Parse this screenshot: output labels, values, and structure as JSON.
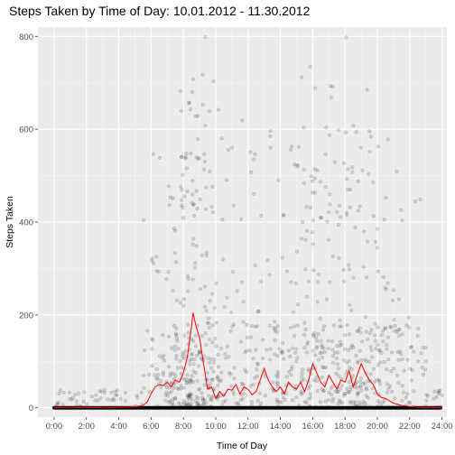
{
  "chart_data": {
    "type": "scatter",
    "title": "Steps Taken by Time of Day: 10.01.2012 - 11.30.2012",
    "xlabel": "Time of Day",
    "ylabel": "Steps Taken",
    "xlim": [
      -1,
      24.3
    ],
    "ylim": [
      -20,
      820
    ],
    "x_ticks": [
      0,
      2,
      4,
      6,
      8,
      10,
      12,
      14,
      16,
      18,
      20,
      22,
      24
    ],
    "x_tick_labels": [
      "0:00",
      "2:00",
      "4:00",
      "6:00",
      "8:00",
      "10:00",
      "12:00",
      "14:00",
      "16:00",
      "18:00",
      "20:00",
      "22:00",
      "24:00"
    ],
    "y_ticks": [
      0,
      200,
      400,
      600,
      800
    ],
    "y_tick_labels": [
      "0",
      "200",
      "400",
      "600",
      "800"
    ],
    "grid": true,
    "background": "#ebebeb",
    "point_color": "#000000",
    "line_color": "#ff0000",
    "mean_line": {
      "x": [
        0,
        1,
        2,
        3,
        4,
        5,
        5.5,
        5.75,
        6,
        6.25,
        6.5,
        6.75,
        7,
        7.25,
        7.5,
        7.75,
        8,
        8.25,
        8.5,
        8.6,
        8.75,
        9,
        9.25,
        9.5,
        9.75,
        10,
        10.25,
        10.5,
        10.75,
        11,
        11.25,
        11.5,
        11.75,
        12,
        12.25,
        12.5,
        12.75,
        13,
        13.25,
        13.5,
        13.75,
        14,
        14.25,
        14.5,
        14.75,
        15,
        15.25,
        15.5,
        15.75,
        16,
        16.25,
        16.5,
        16.75,
        17,
        17.25,
        17.5,
        17.75,
        18,
        18.25,
        18.5,
        18.75,
        19,
        19.25,
        19.5,
        19.75,
        20,
        20.25,
        20.5,
        20.75,
        21,
        21.5,
        22,
        22.5,
        23,
        23.5,
        24
      ],
      "y": [
        1,
        0,
        1,
        0,
        1,
        2,
        5,
        12,
        30,
        45,
        50,
        48,
        55,
        45,
        60,
        55,
        75,
        110,
        175,
        205,
        180,
        150,
        95,
        40,
        45,
        20,
        35,
        25,
        40,
        38,
        50,
        30,
        45,
        40,
        28,
        35,
        60,
        85,
        60,
        45,
        35,
        45,
        30,
        55,
        45,
        40,
        55,
        35,
        60,
        95,
        75,
        55,
        45,
        70,
        55,
        40,
        60,
        55,
        80,
        45,
        70,
        95,
        75,
        60,
        50,
        30,
        22,
        20,
        15,
        10,
        5,
        3,
        1,
        0,
        1,
        0
      ]
    }
  }
}
